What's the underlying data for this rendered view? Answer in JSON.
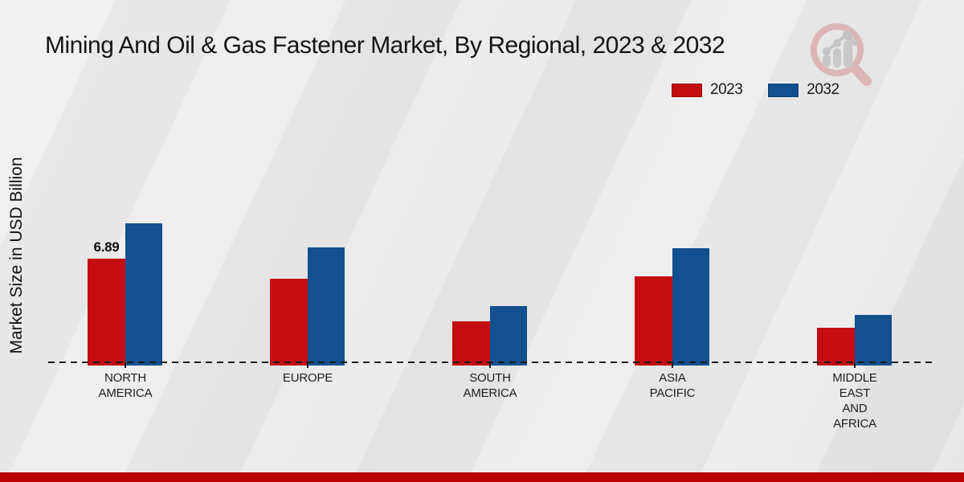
{
  "title": "Mining And Oil & Gas Fastener Market, By Regional, 2023 & 2032",
  "ylabel": "Market Size in USD Billion",
  "legend": {
    "items": [
      {
        "label": "2023",
        "color": "#c40d11"
      },
      {
        "label": "2032",
        "color": "#12508f"
      }
    ]
  },
  "footer": {
    "bar_color": "#bb0101"
  },
  "logo": {
    "name": "magnifier-bar-chart-watermark"
  },
  "chart_data": {
    "type": "bar",
    "categories": [
      "NORTH AMERICA",
      "EUROPE",
      "SOUTH AMERICA",
      "ASIA PACIFIC",
      "MIDDLE EAST AND AFRICA"
    ],
    "category_lines": [
      [
        "NORTH",
        "AMERICA"
      ],
      [
        "EUROPE"
      ],
      [
        "SOUTH",
        "AMERICA"
      ],
      [
        "ASIA",
        "PACIFIC"
      ],
      [
        "MIDDLE",
        "EAST",
        "AND",
        "AFRICA"
      ]
    ],
    "series": [
      {
        "name": "2023",
        "color": "#c40d11",
        "values": [
          6.89,
          5.6,
          2.85,
          5.75,
          2.44
        ]
      },
      {
        "name": "2032",
        "color": "#12508f",
        "values": [
          9.17,
          7.62,
          3.83,
          7.56,
          3.26
        ]
      }
    ],
    "data_labels": [
      {
        "series": "2023",
        "category": "NORTH AMERICA",
        "text": "6.89"
      }
    ],
    "xlabel": "",
    "ylim": [
      0,
      10
    ],
    "grid": false,
    "legend_position": "top-right",
    "baseline_style": "dashed"
  }
}
